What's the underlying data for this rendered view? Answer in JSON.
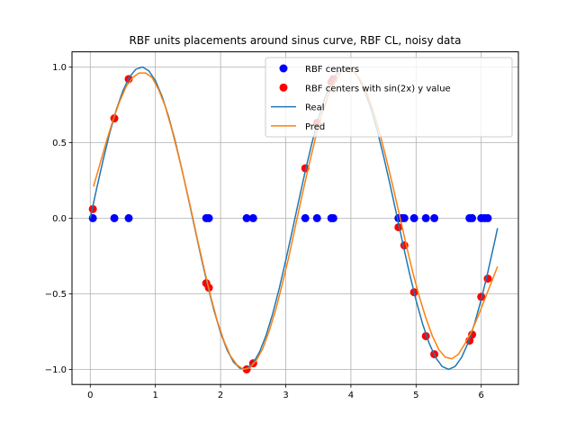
{
  "chart_data": {
    "type": "scatter",
    "title": "RBF units placements around sinus curve, RBF CL, noisy data",
    "xlabel": "",
    "ylabel": "",
    "xlim": [
      -0.28,
      6.57
    ],
    "ylim": [
      -1.1,
      1.1
    ],
    "x_ticks": [
      0,
      1,
      2,
      3,
      4,
      5,
      6
    ],
    "y_ticks": [
      -1.0,
      -0.5,
      0.0,
      0.5,
      1.0
    ],
    "x_tick_labels": [
      "0",
      "1",
      "2",
      "3",
      "4",
      "5",
      "6"
    ],
    "y_tick_labels": [
      "−1.0",
      "−0.5",
      "0.0",
      "0.5",
      "1.0"
    ],
    "grid": true,
    "legend_position": "upper right",
    "colors": {
      "rbf_centers": "#0000ff",
      "rbf_sin": "#ff0000",
      "real": "#1f77b4",
      "pred": "#ff7f0e"
    },
    "legend": [
      {
        "label": "RBF centers",
        "kind": "marker",
        "color": "#0000ff"
      },
      {
        "label": "RBF centers with sin(2x) y value",
        "kind": "marker",
        "color": "#ff0000"
      },
      {
        "label": "Real",
        "kind": "line",
        "color": "#1f77b4"
      },
      {
        "label": "Pred",
        "kind": "line",
        "color": "#ff7f0e"
      }
    ],
    "series": [
      {
        "name": "RBF centers",
        "kind": "scatter",
        "color": "#0000ff",
        "x": [
          0.04,
          0.37,
          0.59,
          1.78,
          1.82,
          2.4,
          2.5,
          3.3,
          3.48,
          3.7,
          3.73,
          4.73,
          4.78,
          4.82,
          4.97,
          5.15,
          5.28,
          5.82,
          5.86,
          6.0,
          6.05,
          6.1
        ],
        "y": [
          0,
          0,
          0,
          0,
          0,
          0,
          0,
          0,
          0,
          0,
          0,
          0,
          0,
          0,
          0,
          0,
          0,
          0,
          0,
          0,
          0,
          0
        ]
      },
      {
        "name": "RBF centers with sin(2x) y value",
        "kind": "scatter",
        "color": "#ff0000",
        "x": [
          0.04,
          0.37,
          0.59,
          1.78,
          1.82,
          2.4,
          2.5,
          3.3,
          3.48,
          3.7,
          3.73,
          4.73,
          4.82,
          4.97,
          5.15,
          5.28,
          5.82,
          5.86,
          6.0,
          6.1
        ],
        "y": [
          0.06,
          0.66,
          0.92,
          -0.43,
          -0.46,
          -1.0,
          -0.96,
          0.33,
          0.63,
          0.9,
          0.92,
          -0.06,
          -0.18,
          -0.49,
          -0.78,
          -0.9,
          -0.81,
          -0.77,
          -0.52,
          -0.4
        ]
      },
      {
        "name": "Real",
        "kind": "line",
        "color": "#1f77b4",
        "x": [
          0.0,
          0.1,
          0.2,
          0.3,
          0.4,
          0.5,
          0.6,
          0.7,
          0.8,
          0.9,
          1.0,
          1.1,
          1.2,
          1.3,
          1.4,
          1.5,
          1.6,
          1.7,
          1.8,
          1.9,
          2.0,
          2.1,
          2.2,
          2.3,
          2.4,
          2.5,
          2.6,
          2.7,
          2.8,
          2.9,
          3.0,
          3.1,
          3.2,
          3.3,
          3.4,
          3.5,
          3.6,
          3.7,
          3.8,
          3.9,
          4.0,
          4.1,
          4.2,
          4.3,
          4.4,
          4.5,
          4.6,
          4.7,
          4.8,
          4.9,
          5.0,
          5.1,
          5.2,
          5.3,
          5.4,
          5.5,
          5.6,
          5.7,
          5.8,
          5.9,
          6.0,
          6.1,
          6.2,
          6.25
        ],
        "y": [
          0.0,
          0.199,
          0.389,
          0.565,
          0.717,
          0.841,
          0.932,
          0.985,
          1.0,
          0.974,
          0.909,
          0.808,
          0.675,
          0.516,
          0.335,
          0.141,
          -0.058,
          -0.256,
          -0.443,
          -0.612,
          -0.757,
          -0.872,
          -0.952,
          -0.994,
          -0.996,
          -0.959,
          -0.883,
          -0.773,
          -0.631,
          -0.465,
          -0.279,
          -0.083,
          0.117,
          0.312,
          0.494,
          0.657,
          0.794,
          0.899,
          0.968,
          0.999,
          0.989,
          0.941,
          0.855,
          0.735,
          0.585,
          0.412,
          0.223,
          0.025,
          -0.175,
          -0.367,
          -0.544,
          -0.699,
          -0.827,
          -0.922,
          -0.981,
          -1.0,
          -0.98,
          -0.92,
          -0.823,
          -0.693,
          -0.537,
          -0.359,
          -0.166,
          -0.066
        ]
      },
      {
        "name": "Pred",
        "kind": "line",
        "color": "#ff7f0e",
        "x": [
          0.05,
          0.15,
          0.25,
          0.35,
          0.45,
          0.55,
          0.65,
          0.75,
          0.85,
          0.95,
          1.05,
          1.15,
          1.25,
          1.35,
          1.45,
          1.55,
          1.65,
          1.75,
          1.85,
          1.95,
          2.05,
          2.15,
          2.25,
          2.35,
          2.45,
          2.55,
          2.65,
          2.75,
          2.85,
          2.95,
          3.05,
          3.15,
          3.25,
          3.35,
          3.45,
          3.55,
          3.65,
          3.75,
          3.85,
          3.95,
          4.05,
          4.15,
          4.25,
          4.35,
          4.45,
          4.55,
          4.65,
          4.75,
          4.85,
          4.95,
          5.05,
          5.15,
          5.25,
          5.35,
          5.45,
          5.55,
          5.65,
          5.75,
          5.85,
          5.95,
          6.05,
          6.15,
          6.25
        ],
        "y": [
          0.21,
          0.36,
          0.51,
          0.65,
          0.77,
          0.87,
          0.93,
          0.96,
          0.96,
          0.93,
          0.85,
          0.74,
          0.59,
          0.42,
          0.24,
          0.05,
          -0.15,
          -0.34,
          -0.52,
          -0.68,
          -0.81,
          -0.91,
          -0.97,
          -1.0,
          -0.99,
          -0.94,
          -0.86,
          -0.74,
          -0.6,
          -0.43,
          -0.25,
          -0.05,
          0.15,
          0.34,
          0.52,
          0.68,
          0.81,
          0.9,
          0.97,
          0.99,
          0.97,
          0.91,
          0.82,
          0.7,
          0.55,
          0.38,
          0.2,
          0.01,
          -0.18,
          -0.36,
          -0.52,
          -0.66,
          -0.78,
          -0.87,
          -0.92,
          -0.93,
          -0.9,
          -0.83,
          -0.75,
          -0.65,
          -0.54,
          -0.43,
          -0.32
        ]
      }
    ]
  }
}
